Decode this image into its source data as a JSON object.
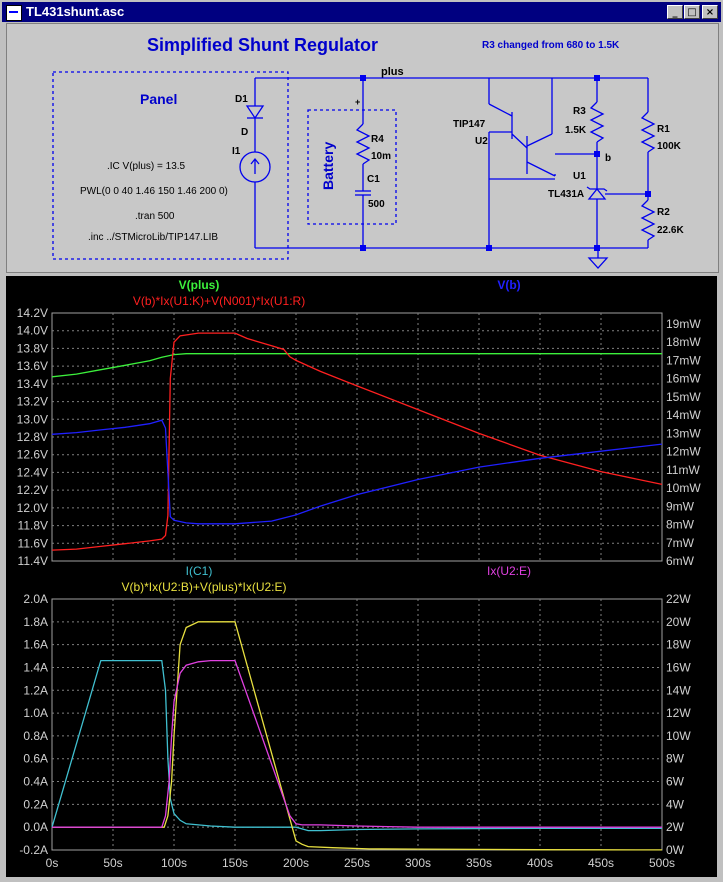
{
  "window": {
    "title": "TL431shunt.asc",
    "buttons": [
      "_",
      "□",
      "×"
    ]
  },
  "schematic": {
    "title": "Simplified Shunt Regulator",
    "note": "R3 changed from 680 to 1.5K",
    "net_plus": "plus",
    "panel_label": "Panel",
    "battery_label": "Battery",
    "directives": [
      ".IC V(plus) = 13.5",
      "PWL(0 0 40 1.46 150 1.46 200 0)",
      ".tran 500",
      ".inc ../STMicroLib/TIP147.LIB"
    ],
    "parts": {
      "d1": "D1",
      "d1_model": "D",
      "i1": "I1",
      "r4": "R4",
      "r4_val": "10m",
      "c1": "C1",
      "c1_val": "500",
      "q_model": "TIP147",
      "q_ref": "U2",
      "r3": "R3",
      "r3_val": "1.5K",
      "r1": "R1",
      "r1_val": "100K",
      "r2": "R2",
      "r2_val": "22.6K",
      "u1": "U1",
      "u1_model": "TL431A",
      "net_b": "b",
      "plus_sign": "+"
    }
  },
  "colors": {
    "green": "#3cf03c",
    "red": "#ff2020",
    "blue": "#2020ff",
    "cyan": "#40c0d0",
    "yellow": "#e8e040",
    "magenta": "#e040e0"
  },
  "chart_data": [
    {
      "type": "line",
      "title": "",
      "y_left_ticks": [
        "14.2V",
        "14.0V",
        "13.8V",
        "13.6V",
        "13.4V",
        "13.2V",
        "13.0V",
        "12.8V",
        "12.6V",
        "12.4V",
        "12.2V",
        "12.0V",
        "11.8V",
        "11.6V",
        "11.4V"
      ],
      "y_right_ticks": [
        "19mW",
        "18mW",
        "17mW",
        "16mW",
        "15mW",
        "14mW",
        "13mW",
        "12mW",
        "11mW",
        "10mW",
        "9mW",
        "8mW",
        "7mW",
        "6mW"
      ],
      "ylim_left": [
        11.4,
        14.2
      ],
      "ylim_right": [
        6,
        19.6
      ],
      "xlim": [
        0,
        500
      ],
      "series": [
        {
          "name": "V(plus)",
          "axis": "left",
          "color": "green",
          "x": [
            0,
            20,
            40,
            60,
            80,
            90,
            100,
            110,
            150,
            200,
            300,
            400,
            500
          ],
          "y": [
            13.48,
            13.51,
            13.56,
            13.61,
            13.66,
            13.7,
            13.73,
            13.74,
            13.74,
            13.74,
            13.74,
            13.74,
            13.74
          ]
        },
        {
          "name": "V(b)*Ix(U1:K)+V(N001)*Ix(U1:R)",
          "axis": "right",
          "color": "red",
          "x": [
            0,
            20,
            40,
            60,
            80,
            90,
            93,
            95,
            97,
            100,
            105,
            120,
            150,
            160,
            180,
            190,
            195,
            200,
            220,
            250,
            300,
            350,
            400,
            450,
            500
          ],
          "y": [
            6.6,
            6.65,
            6.8,
            6.95,
            7.1,
            7.2,
            7.4,
            8.5,
            16.0,
            18.0,
            18.35,
            18.5,
            18.5,
            18.2,
            17.8,
            17.6,
            17.2,
            17.0,
            16.4,
            15.6,
            14.3,
            13.0,
            11.8,
            10.9,
            10.2
          ]
        },
        {
          "name": "V(b)",
          "axis": "left",
          "color": "blue",
          "x": [
            0,
            20,
            40,
            60,
            80,
            90,
            93,
            95,
            97,
            100,
            110,
            120,
            150,
            180,
            200,
            220,
            250,
            300,
            350,
            400,
            450,
            500
          ],
          "y": [
            12.83,
            12.85,
            12.88,
            12.91,
            12.95,
            12.99,
            12.9,
            12.4,
            11.9,
            11.86,
            11.83,
            11.82,
            11.82,
            11.85,
            11.92,
            12.02,
            12.15,
            12.32,
            12.46,
            12.56,
            12.64,
            12.72
          ]
        }
      ]
    },
    {
      "type": "line",
      "title": "",
      "y_left_ticks": [
        "2.0A",
        "1.8A",
        "1.6A",
        "1.4A",
        "1.2A",
        "1.0A",
        "0.8A",
        "0.6A",
        "0.4A",
        "0.2A",
        "0.0A",
        "-0.2A"
      ],
      "y_right_ticks": [
        "22W",
        "20W",
        "18W",
        "16W",
        "14W",
        "12W",
        "10W",
        "8W",
        "6W",
        "4W",
        "2W",
        "0W"
      ],
      "ylim_left": [
        -0.2,
        2.0
      ],
      "ylim_right": [
        0,
        22
      ],
      "xlim": [
        0,
        500
      ],
      "x_ticks": [
        "0s",
        "50s",
        "100s",
        "150s",
        "200s",
        "250s",
        "300s",
        "350s",
        "400s",
        "450s",
        "500s"
      ],
      "series": [
        {
          "name": "I(C1)",
          "axis": "left",
          "color": "cyan",
          "x": [
            0,
            40,
            90,
            93,
            95,
            97,
            100,
            105,
            110,
            120,
            130,
            150,
            200,
            210,
            220,
            250,
            300,
            400,
            500
          ],
          "y": [
            0,
            1.46,
            1.46,
            1.2,
            0.6,
            0.25,
            0.12,
            0.06,
            0.03,
            0.02,
            0.01,
            0,
            0,
            -0.03,
            -0.03,
            -0.02,
            -0.015,
            -0.01,
            -0.01
          ]
        },
        {
          "name": "V(b)*Ix(U2:B)+V(plus)*Ix(U2:E)",
          "axis": "right",
          "color": "yellow",
          "x": [
            0,
            90,
            92,
            95,
            98,
            100,
            105,
            110,
            120,
            130,
            150,
            200,
            205,
            210,
            230,
            260,
            300,
            350,
            400,
            450,
            500
          ],
          "y": [
            2.0,
            2.0,
            2.0,
            3.0,
            6.0,
            10.0,
            18.0,
            19.5,
            20.0,
            20.0,
            20.0,
            0.8,
            0.5,
            0.3,
            0.2,
            0.1,
            0.08,
            0.05,
            0.03,
            0.02,
            0.01
          ]
        },
        {
          "name": "Ix(U2:E)",
          "axis": "left",
          "color": "magenta",
          "x": [
            0,
            90,
            93,
            96,
            98,
            100,
            105,
            110,
            120,
            130,
            150,
            195,
            200,
            205,
            210,
            220,
            250,
            300,
            500
          ],
          "y": [
            0,
            0,
            0.1,
            0.4,
            0.8,
            1.1,
            1.35,
            1.42,
            1.45,
            1.46,
            1.46,
            0.1,
            0.03,
            0.02,
            0.02,
            0.02,
            0.01,
            0.0,
            0.0
          ]
        }
      ]
    }
  ]
}
